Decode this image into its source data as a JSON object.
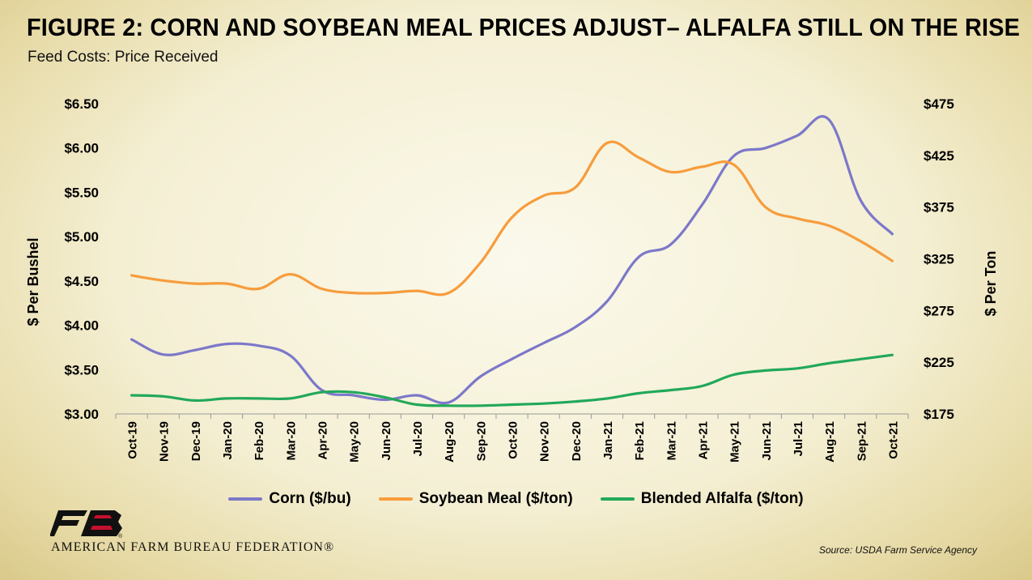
{
  "title": "FIGURE 2: CORN AND SOYBEAN MEAL PRICES ADJUST– ALFALFA STILL ON THE RISE",
  "subtitle": "Feed Costs: Price Received",
  "source": "Source: USDA Farm Service Agency",
  "organization": "AMERICAN FARM BUREAU FEDERATION®",
  "logo_text": "FB",
  "chart_data": {
    "type": "line",
    "categories": [
      "Oct-19",
      "Nov-19",
      "Dec-19",
      "Jan-20",
      "Feb-20",
      "Mar-20",
      "Apr-20",
      "May-20",
      "Jun-20",
      "Jul-20",
      "Aug-20",
      "Sep-20",
      "Oct-20",
      "Nov-20",
      "Dec-20",
      "Jan-21",
      "Feb-21",
      "Mar-21",
      "Apr-21",
      "May-21",
      "Jun-21",
      "Jul-21",
      "Aug-21",
      "Sep-21",
      "Oct-21"
    ],
    "ylabel_left": "$ Per Bushel",
    "ylabel_right": "$ Per Ton",
    "ylim_left": [
      3.0,
      6.5
    ],
    "ylim_right": [
      175,
      475
    ],
    "yticks_left": [
      "$3.00",
      "$3.50",
      "$4.00",
      "$4.50",
      "$5.00",
      "$5.50",
      "$6.00",
      "$6.50"
    ],
    "yticks_right": [
      "$175",
      "$225",
      "$275",
      "$325",
      "$375",
      "$425",
      "$475"
    ],
    "grid": false,
    "legend_position": "bottom",
    "series": [
      {
        "name": "Corn ($/bu)",
        "axis": "left",
        "color": "#7c78c9",
        "values": [
          3.84,
          3.67,
          3.72,
          3.79,
          3.77,
          3.66,
          3.27,
          3.21,
          3.16,
          3.21,
          3.13,
          3.42,
          3.62,
          3.8,
          3.98,
          4.27,
          4.77,
          4.91,
          5.36,
          5.91,
          6.0,
          6.14,
          6.32,
          5.41,
          5.03
        ]
      },
      {
        "name": "Soybean Meal ($/ton)",
        "axis": "right",
        "color": "#f79c3c",
        "values": [
          309,
          304,
          301,
          301,
          296,
          310,
          296,
          292,
          292,
          294,
          292,
          321,
          365,
          386,
          394,
          437,
          423,
          409,
          414,
          416,
          375,
          364,
          357,
          342,
          323
        ]
      },
      {
        "name": "Blended Alfalfa ($/ton)",
        "axis": "right",
        "color": "#22a85a",
        "values": [
          193,
          192,
          188,
          190,
          190,
          190,
          196,
          196,
          191,
          184,
          183,
          183,
          184,
          185,
          187,
          190,
          195,
          198,
          202,
          213,
          217,
          219,
          224,
          228,
          232
        ]
      }
    ]
  }
}
